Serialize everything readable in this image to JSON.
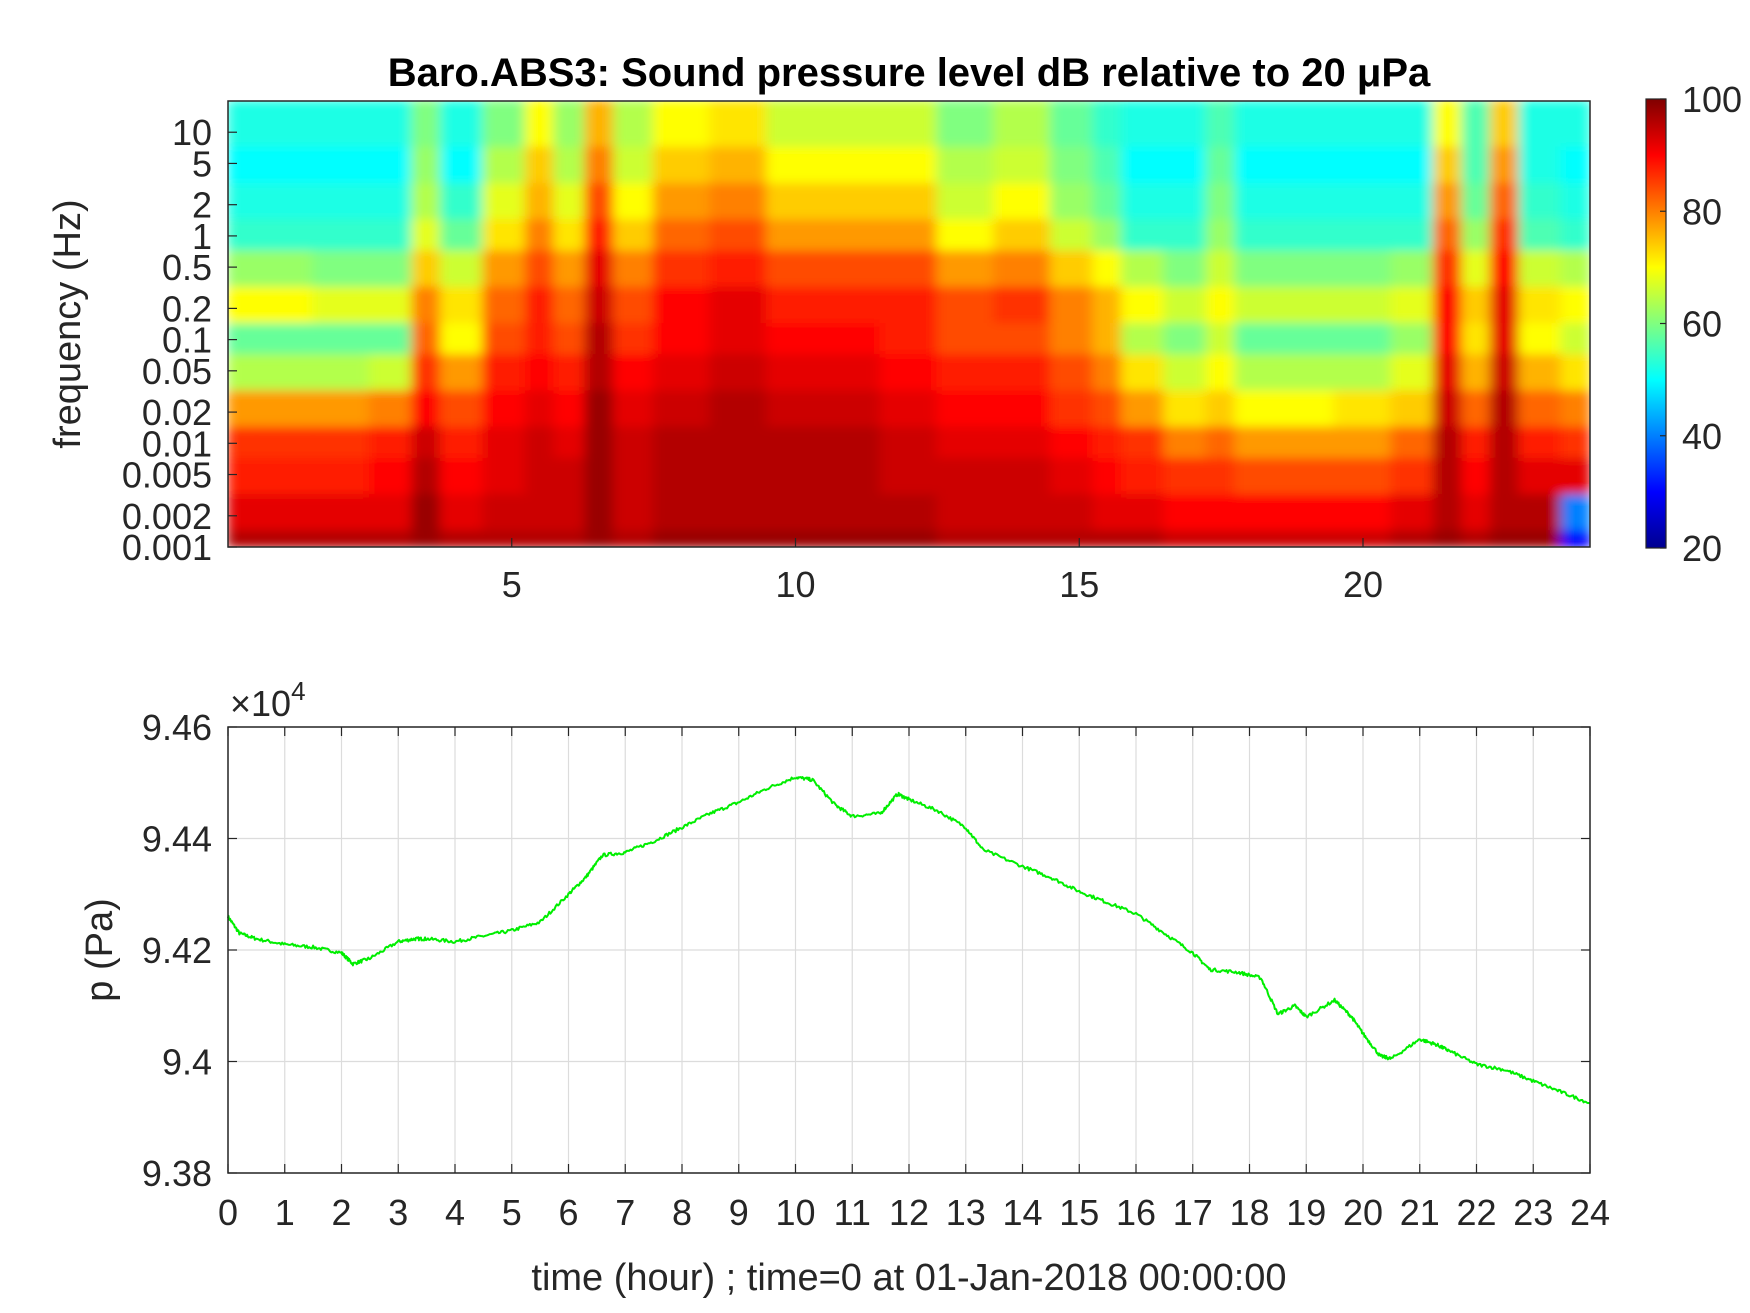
{
  "chart_data": [
    {
      "type": "heatmap",
      "title": "Baro.ABS3: Sound pressure level dB relative to 20 μPa",
      "ylabel": "frequency (Hz)",
      "xlabel": "",
      "y_scale": "log",
      "xlim": [
        0,
        24
      ],
      "ylim": [
        0.001,
        20
      ],
      "x_ticks": [
        5,
        10,
        15,
        20
      ],
      "y_ticks": [
        {
          "value": 10,
          "label": "10"
        },
        {
          "value": 5,
          "label": "5"
        },
        {
          "value": 2,
          "label": "2"
        },
        {
          "value": 1,
          "label": "1"
        },
        {
          "value": 0.5,
          "label": "0.5"
        },
        {
          "value": 0.2,
          "label": "0.2"
        },
        {
          "value": 0.1,
          "label": "0.1"
        },
        {
          "value": 0.05,
          "label": "0.05"
        },
        {
          "value": 0.02,
          "label": "0.02"
        },
        {
          "value": 0.01,
          "label": "0.01"
        },
        {
          "value": 0.005,
          "label": "0.005"
        },
        {
          "value": 0.002,
          "label": "0.002"
        },
        {
          "value": 0.001,
          "label": "0.001"
        }
      ],
      "colormap": "jet",
      "colorbar": {
        "range": [
          20,
          100
        ],
        "ticks": [
          "100",
          "80",
          "60",
          "40",
          "20"
        ]
      },
      "time_hours": [
        0,
        1,
        2,
        3,
        3.5,
        4,
        5,
        5.5,
        6,
        6.6,
        7,
        8,
        9,
        10,
        11,
        12,
        13,
        14,
        15,
        15.5,
        16,
        17,
        17.5,
        18,
        19,
        20,
        21,
        21.5,
        22,
        22.5,
        23,
        24
      ],
      "row_frequencies_hz": [
        10,
        5,
        2,
        1,
        0.5,
        0.2,
        0.1,
        0.05,
        0.02,
        0.01,
        0.005,
        0.002,
        0.001
      ],
      "level_db": [
        [
          52,
          52,
          52,
          52,
          60,
          52,
          60,
          70,
          62,
          76,
          64,
          70,
          72,
          66,
          66,
          66,
          60,
          64,
          58,
          54,
          52,
          52,
          56,
          52,
          52,
          52,
          52,
          70,
          56,
          74,
          52,
          52
        ],
        [
          50,
          50,
          50,
          50,
          62,
          50,
          64,
          74,
          64,
          80,
          66,
          74,
          76,
          70,
          70,
          70,
          64,
          66,
          60,
          56,
          50,
          50,
          58,
          50,
          50,
          50,
          50,
          74,
          56,
          78,
          52,
          50
        ],
        [
          52,
          52,
          52,
          52,
          64,
          54,
          68,
          76,
          68,
          84,
          70,
          78,
          80,
          74,
          74,
          74,
          66,
          70,
          62,
          58,
          52,
          52,
          60,
          52,
          52,
          52,
          52,
          78,
          58,
          82,
          54,
          52
        ],
        [
          54,
          54,
          54,
          54,
          68,
          58,
          72,
          80,
          72,
          88,
          74,
          82,
          84,
          78,
          78,
          78,
          70,
          74,
          66,
          62,
          54,
          54,
          62,
          54,
          54,
          54,
          54,
          82,
          62,
          86,
          56,
          54
        ],
        [
          62,
          62,
          60,
          60,
          74,
          66,
          78,
          84,
          78,
          92,
          80,
          86,
          88,
          84,
          84,
          84,
          78,
          80,
          74,
          70,
          64,
          60,
          66,
          60,
          60,
          60,
          62,
          86,
          68,
          90,
          66,
          64
        ],
        [
          70,
          70,
          68,
          68,
          80,
          72,
          82,
          88,
          82,
          94,
          84,
          90,
          92,
          88,
          88,
          88,
          84,
          86,
          80,
          76,
          70,
          66,
          70,
          66,
          66,
          66,
          68,
          90,
          74,
          92,
          72,
          70
        ],
        [
          58,
          58,
          58,
          58,
          82,
          70,
          84,
          88,
          84,
          96,
          86,
          90,
          92,
          90,
          90,
          88,
          84,
          84,
          80,
          76,
          64,
          60,
          66,
          58,
          58,
          58,
          62,
          90,
          72,
          92,
          70,
          66
        ],
        [
          64,
          64,
          64,
          66,
          86,
          78,
          88,
          90,
          88,
          96,
          90,
          92,
          94,
          92,
          92,
          90,
          88,
          88,
          84,
          80,
          72,
          66,
          70,
          64,
          64,
          64,
          68,
          92,
          76,
          94,
          76,
          72
        ],
        [
          78,
          78,
          78,
          80,
          90,
          84,
          90,
          92,
          90,
          98,
          92,
          94,
          96,
          94,
          94,
          92,
          90,
          90,
          86,
          84,
          78,
          72,
          74,
          70,
          70,
          72,
          74,
          94,
          82,
          96,
          82,
          80
        ],
        [
          86,
          86,
          86,
          88,
          94,
          88,
          92,
          94,
          92,
          98,
          94,
          96,
          96,
          96,
          96,
          94,
          92,
          92,
          90,
          88,
          86,
          80,
          82,
          78,
          78,
          78,
          82,
          96,
          88,
          96,
          88,
          86
        ],
        [
          88,
          88,
          88,
          90,
          96,
          90,
          92,
          94,
          94,
          98,
          94,
          96,
          96,
          96,
          96,
          94,
          94,
          94,
          92,
          90,
          88,
          86,
          86,
          84,
          84,
          84,
          86,
          96,
          90,
          96,
          92,
          92
        ],
        [
          92,
          92,
          92,
          92,
          98,
          92,
          94,
          94,
          94,
          98,
          94,
          96,
          96,
          96,
          96,
          96,
          94,
          94,
          94,
          92,
          92,
          90,
          90,
          90,
          90,
          90,
          92,
          96,
          92,
          96,
          96,
          40
        ],
        [
          96,
          96,
          96,
          96,
          98,
          96,
          96,
          96,
          96,
          98,
          96,
          98,
          98,
          98,
          98,
          98,
          96,
          96,
          96,
          96,
          96,
          94,
          94,
          94,
          94,
          94,
          96,
          98,
          96,
          98,
          98,
          30
        ]
      ]
    },
    {
      "type": "line",
      "xlabel": "time (hour) ; time=0 at 01-Jan-2018 00:00:00",
      "ylabel": "p (Pa)",
      "y_multiplier_label": "×10",
      "y_multiplier_exponent": "4",
      "xlim": [
        0,
        24
      ],
      "ylim": [
        93800,
        94600
      ],
      "x_ticks": [
        "0",
        "1",
        "2",
        "3",
        "4",
        "5",
        "6",
        "7",
        "8",
        "9",
        "10",
        "11",
        "12",
        "13",
        "14",
        "15",
        "16",
        "17",
        "18",
        "19",
        "20",
        "21",
        "22",
        "23",
        "24"
      ],
      "y_ticks": [
        {
          "value": 94600,
          "label": "9.46"
        },
        {
          "value": 94400,
          "label": "9.44"
        },
        {
          "value": 94200,
          "label": "9.42"
        },
        {
          "value": 94000,
          "label": "9.4"
        },
        {
          "value": 93800,
          "label": "9.38"
        }
      ],
      "grid": true,
      "line_color": "#00ee00",
      "series": [
        {
          "x": [
            0,
            0.2,
            0.5,
            1.0,
            1.5,
            2.0,
            2.2,
            2.5,
            3.0,
            3.3,
            3.5,
            4.0,
            4.5,
            5.0,
            5.5,
            6.0,
            6.3,
            6.6,
            7.0,
            7.5,
            8.0,
            8.5,
            9.0,
            9.5,
            10.0,
            10.3,
            10.7,
            11.0,
            11.5,
            11.8,
            12.0,
            12.5,
            13.0,
            13.3,
            14.0,
            14.5,
            15.0,
            15.5,
            16.0,
            16.5,
            17.0,
            17.3,
            17.8,
            18.2,
            18.5,
            18.8,
            19.0,
            19.5,
            19.8,
            20.0,
            20.3,
            20.5,
            21.0,
            21.3,
            21.5,
            22.0,
            22.5,
            23.0,
            23.5,
            24.0
          ],
          "y": [
            94260,
            94230,
            94220,
            94210,
            94205,
            94195,
            94175,
            94185,
            94215,
            94220,
            94220,
            94215,
            94225,
            94235,
            94250,
            94300,
            94330,
            94370,
            94375,
            94395,
            94420,
            94445,
            94465,
            94490,
            94510,
            94505,
            94460,
            94440,
            94445,
            94480,
            94470,
            94450,
            94420,
            94380,
            94350,
            94330,
            94305,
            94285,
            94265,
            94230,
            94195,
            94165,
            94160,
            94150,
            94085,
            94100,
            94080,
            94110,
            94080,
            94050,
            94010,
            94005,
            94040,
            94030,
            94020,
            93995,
            93985,
            93965,
            93945,
            93925
          ]
        }
      ]
    }
  ]
}
